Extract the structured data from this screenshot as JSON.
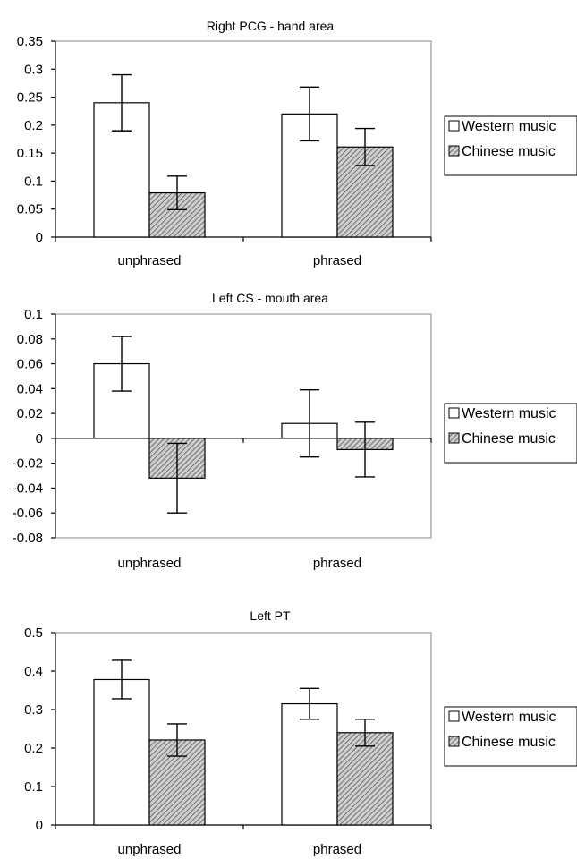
{
  "colors": {
    "series_a_fill": "#ffffff",
    "series_b_fill": "hatched-gray",
    "stroke": "#000000"
  },
  "chart_data": [
    {
      "type": "bar",
      "title": "Right PCG - hand area",
      "categories": [
        "unphrased",
        "phrased"
      ],
      "ylim": [
        0,
        0.35
      ],
      "yticks": [
        0,
        0.05,
        0.1,
        0.15,
        0.2,
        0.25,
        0.3,
        0.35
      ],
      "ytick_labels": [
        "0",
        "0.05",
        "0.1",
        "0.15",
        "0.2",
        "0.25",
        "0.3",
        "0.35"
      ],
      "series": [
        {
          "name": "Western music",
          "values": [
            0.24,
            0.22
          ],
          "errors": [
            0.05,
            0.048
          ]
        },
        {
          "name": "Chinese music",
          "values": [
            0.079,
            0.161
          ],
          "errors": [
            0.03,
            0.033
          ]
        }
      ],
      "legend": "right",
      "grid": false
    },
    {
      "type": "bar",
      "title": "Left CS - mouth area",
      "categories": [
        "unphrased",
        "phrased"
      ],
      "ylim": [
        -0.08,
        0.1
      ],
      "yticks": [
        -0.08,
        -0.06,
        -0.04,
        -0.02,
        0,
        0.02,
        0.04,
        0.06,
        0.08,
        0.1
      ],
      "ytick_labels": [
        "-0.08",
        "-0.06",
        "-0.04",
        "-0.02",
        "0",
        "0.02",
        "0.04",
        "0.06",
        "0.08",
        "0.1"
      ],
      "series": [
        {
          "name": "Western music",
          "values": [
            0.06,
            0.012
          ],
          "errors": [
            0.022,
            0.027
          ]
        },
        {
          "name": "Chinese music",
          "values": [
            -0.032,
            -0.009
          ],
          "errors": [
            0.028,
            0.022
          ]
        }
      ],
      "legend": "right",
      "grid": false
    },
    {
      "type": "bar",
      "title": "Left PT",
      "categories": [
        "unphrased",
        "phrased"
      ],
      "ylim": [
        0,
        0.5
      ],
      "yticks": [
        0,
        0.1,
        0.2,
        0.3,
        0.4,
        0.5
      ],
      "ytick_labels": [
        "0",
        "0.1",
        "0.2",
        "0.3",
        "0.4",
        "0.5"
      ],
      "series": [
        {
          "name": "Western music",
          "values": [
            0.378,
            0.315
          ],
          "errors": [
            0.05,
            0.04
          ]
        },
        {
          "name": "Chinese music",
          "values": [
            0.221,
            0.24
          ],
          "errors": [
            0.042,
            0.035
          ]
        }
      ],
      "legend": "right",
      "grid": false
    }
  ]
}
